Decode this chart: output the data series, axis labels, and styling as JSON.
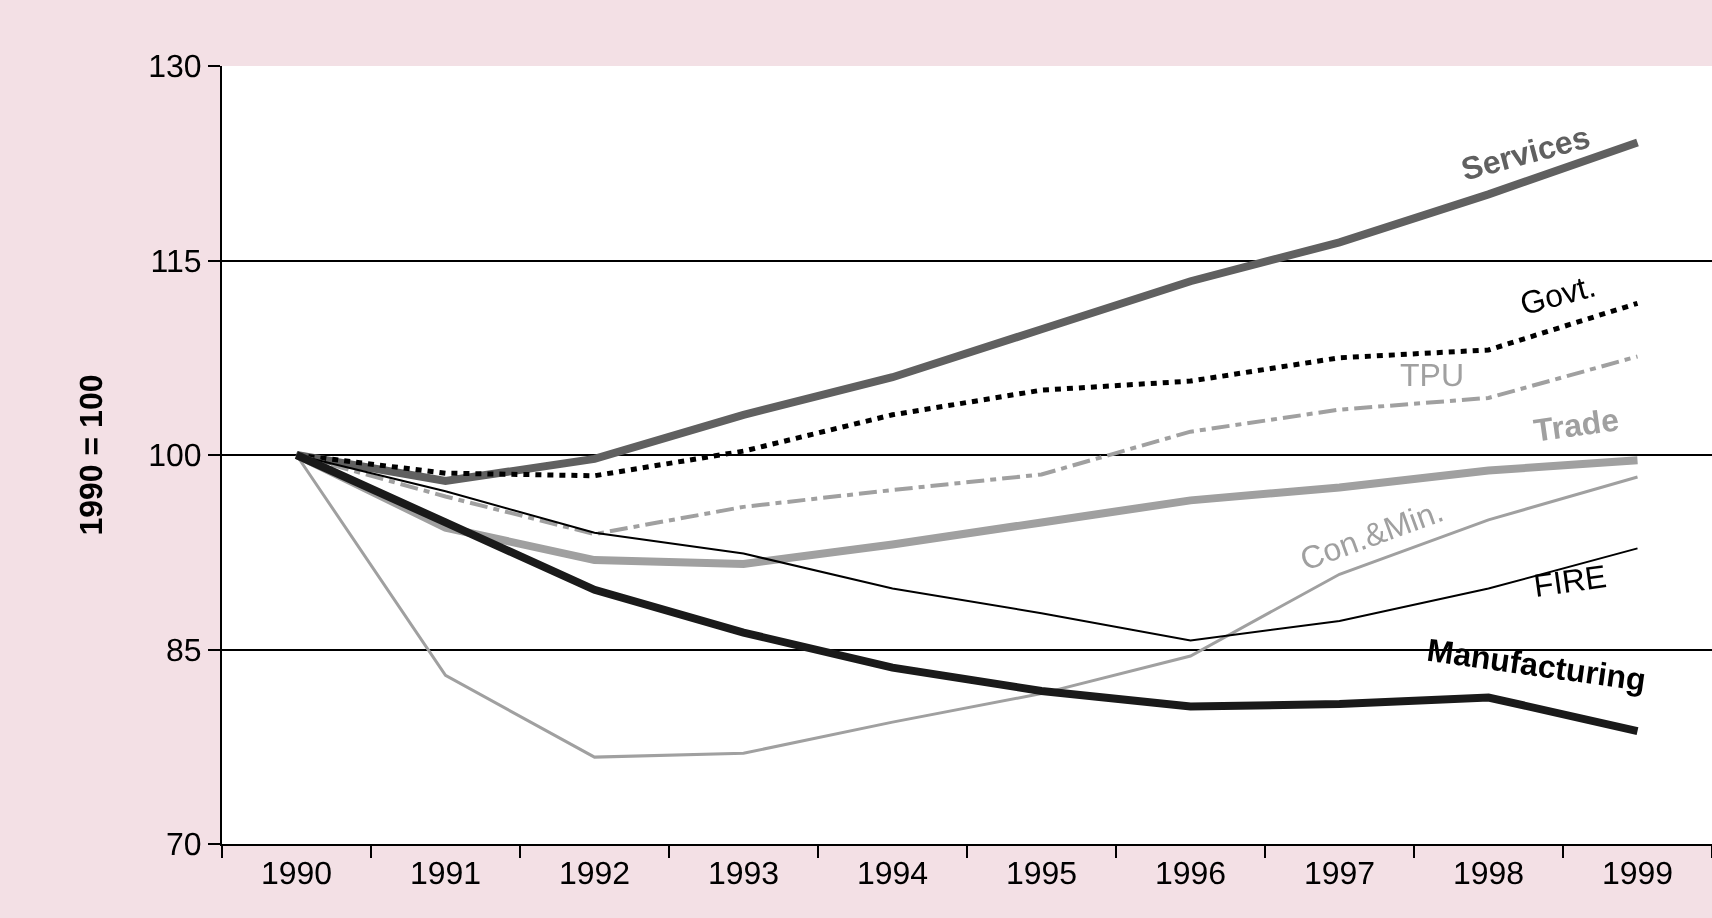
{
  "chart_data": {
    "type": "line",
    "ylabel": "1990 = 100",
    "categories": [
      "1990",
      "1991",
      "1992",
      "1993",
      "1994",
      "1995",
      "1996",
      "1997",
      "1998",
      "1999"
    ],
    "ylim": [
      70,
      130
    ],
    "yticks": [
      70,
      85,
      100,
      115,
      130
    ],
    "grid": "y",
    "legend": false,
    "marker": "none",
    "series": [
      {
        "name": "Services",
        "color": "#606060",
        "line_style": "solid",
        "values": [
          100,
          98.0,
          99.7,
          103.1,
          106.0,
          109.7,
          113.4,
          116.4,
          120.1,
          124.1
        ]
      },
      {
        "name": "Govt.",
        "color": "#000000",
        "line_style": "dotted",
        "values": [
          100,
          98.6,
          98.4,
          100.3,
          103.1,
          105.0,
          105.7,
          107.5,
          108.1,
          111.7
        ]
      },
      {
        "name": "TPU",
        "color": "#a0a0a0",
        "line_style": "dashed",
        "values": [
          100,
          96.8,
          93.9,
          96.0,
          97.3,
          98.5,
          101.8,
          103.5,
          104.4,
          107.6
        ]
      },
      {
        "name": "Trade",
        "color": "#a0a0a0",
        "line_style": "solid",
        "values": [
          100,
          94.4,
          91.9,
          91.6,
          93.1,
          94.8,
          96.5,
          97.5,
          98.8,
          99.6
        ]
      },
      {
        "name": "Con.&Min.",
        "color": "#a0a0a0",
        "line_style": "solid",
        "values": [
          100,
          83.0,
          76.7,
          77.0,
          79.4,
          81.6,
          84.5,
          90.8,
          95.0,
          98.3
        ]
      },
      {
        "name": "FIRE",
        "color": "#000000",
        "line_style": "solid",
        "values": [
          100,
          97.2,
          94.0,
          92.4,
          89.7,
          87.8,
          85.7,
          87.2,
          89.7,
          92.8
        ]
      },
      {
        "name": "Manufacturing",
        "color": "#1a1a1a",
        "line_style": "solid",
        "values": [
          100,
          94.8,
          89.6,
          86.3,
          83.6,
          81.8,
          80.6,
          80.8,
          81.3,
          78.7
        ]
      }
    ]
  }
}
